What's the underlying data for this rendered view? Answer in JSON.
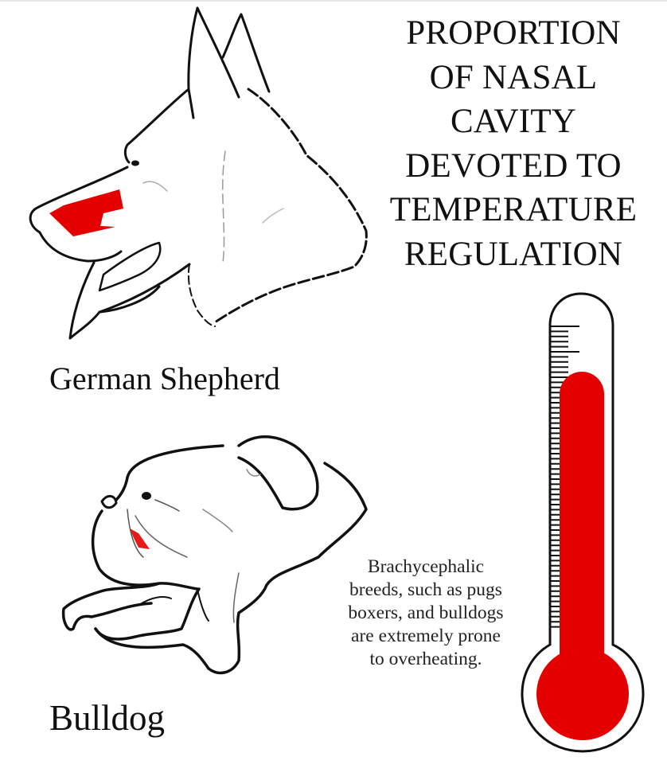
{
  "title_lines": [
    "PROPORTION",
    "OF NASAL",
    "CAVITY",
    "DEVOTED TO",
    "TEMPERATURE",
    "REGULATION"
  ],
  "breeds": [
    {
      "label": "German Shepherd",
      "icon": "german-shepherd-head-illustration"
    },
    {
      "label": "Bulldog",
      "icon": "bulldog-head-illustration"
    }
  ],
  "note_lines": [
    "Brachycephalic",
    "breeds, such as pugs",
    "boxers, and bulldogs",
    "are extremely prone",
    "to overheating."
  ],
  "thermometer": {
    "icon": "thermometer-icon",
    "fill_fraction": 0.85
  },
  "colors": {
    "highlight": "#e50000",
    "outline": "#111111",
    "background": "#ffffff"
  }
}
